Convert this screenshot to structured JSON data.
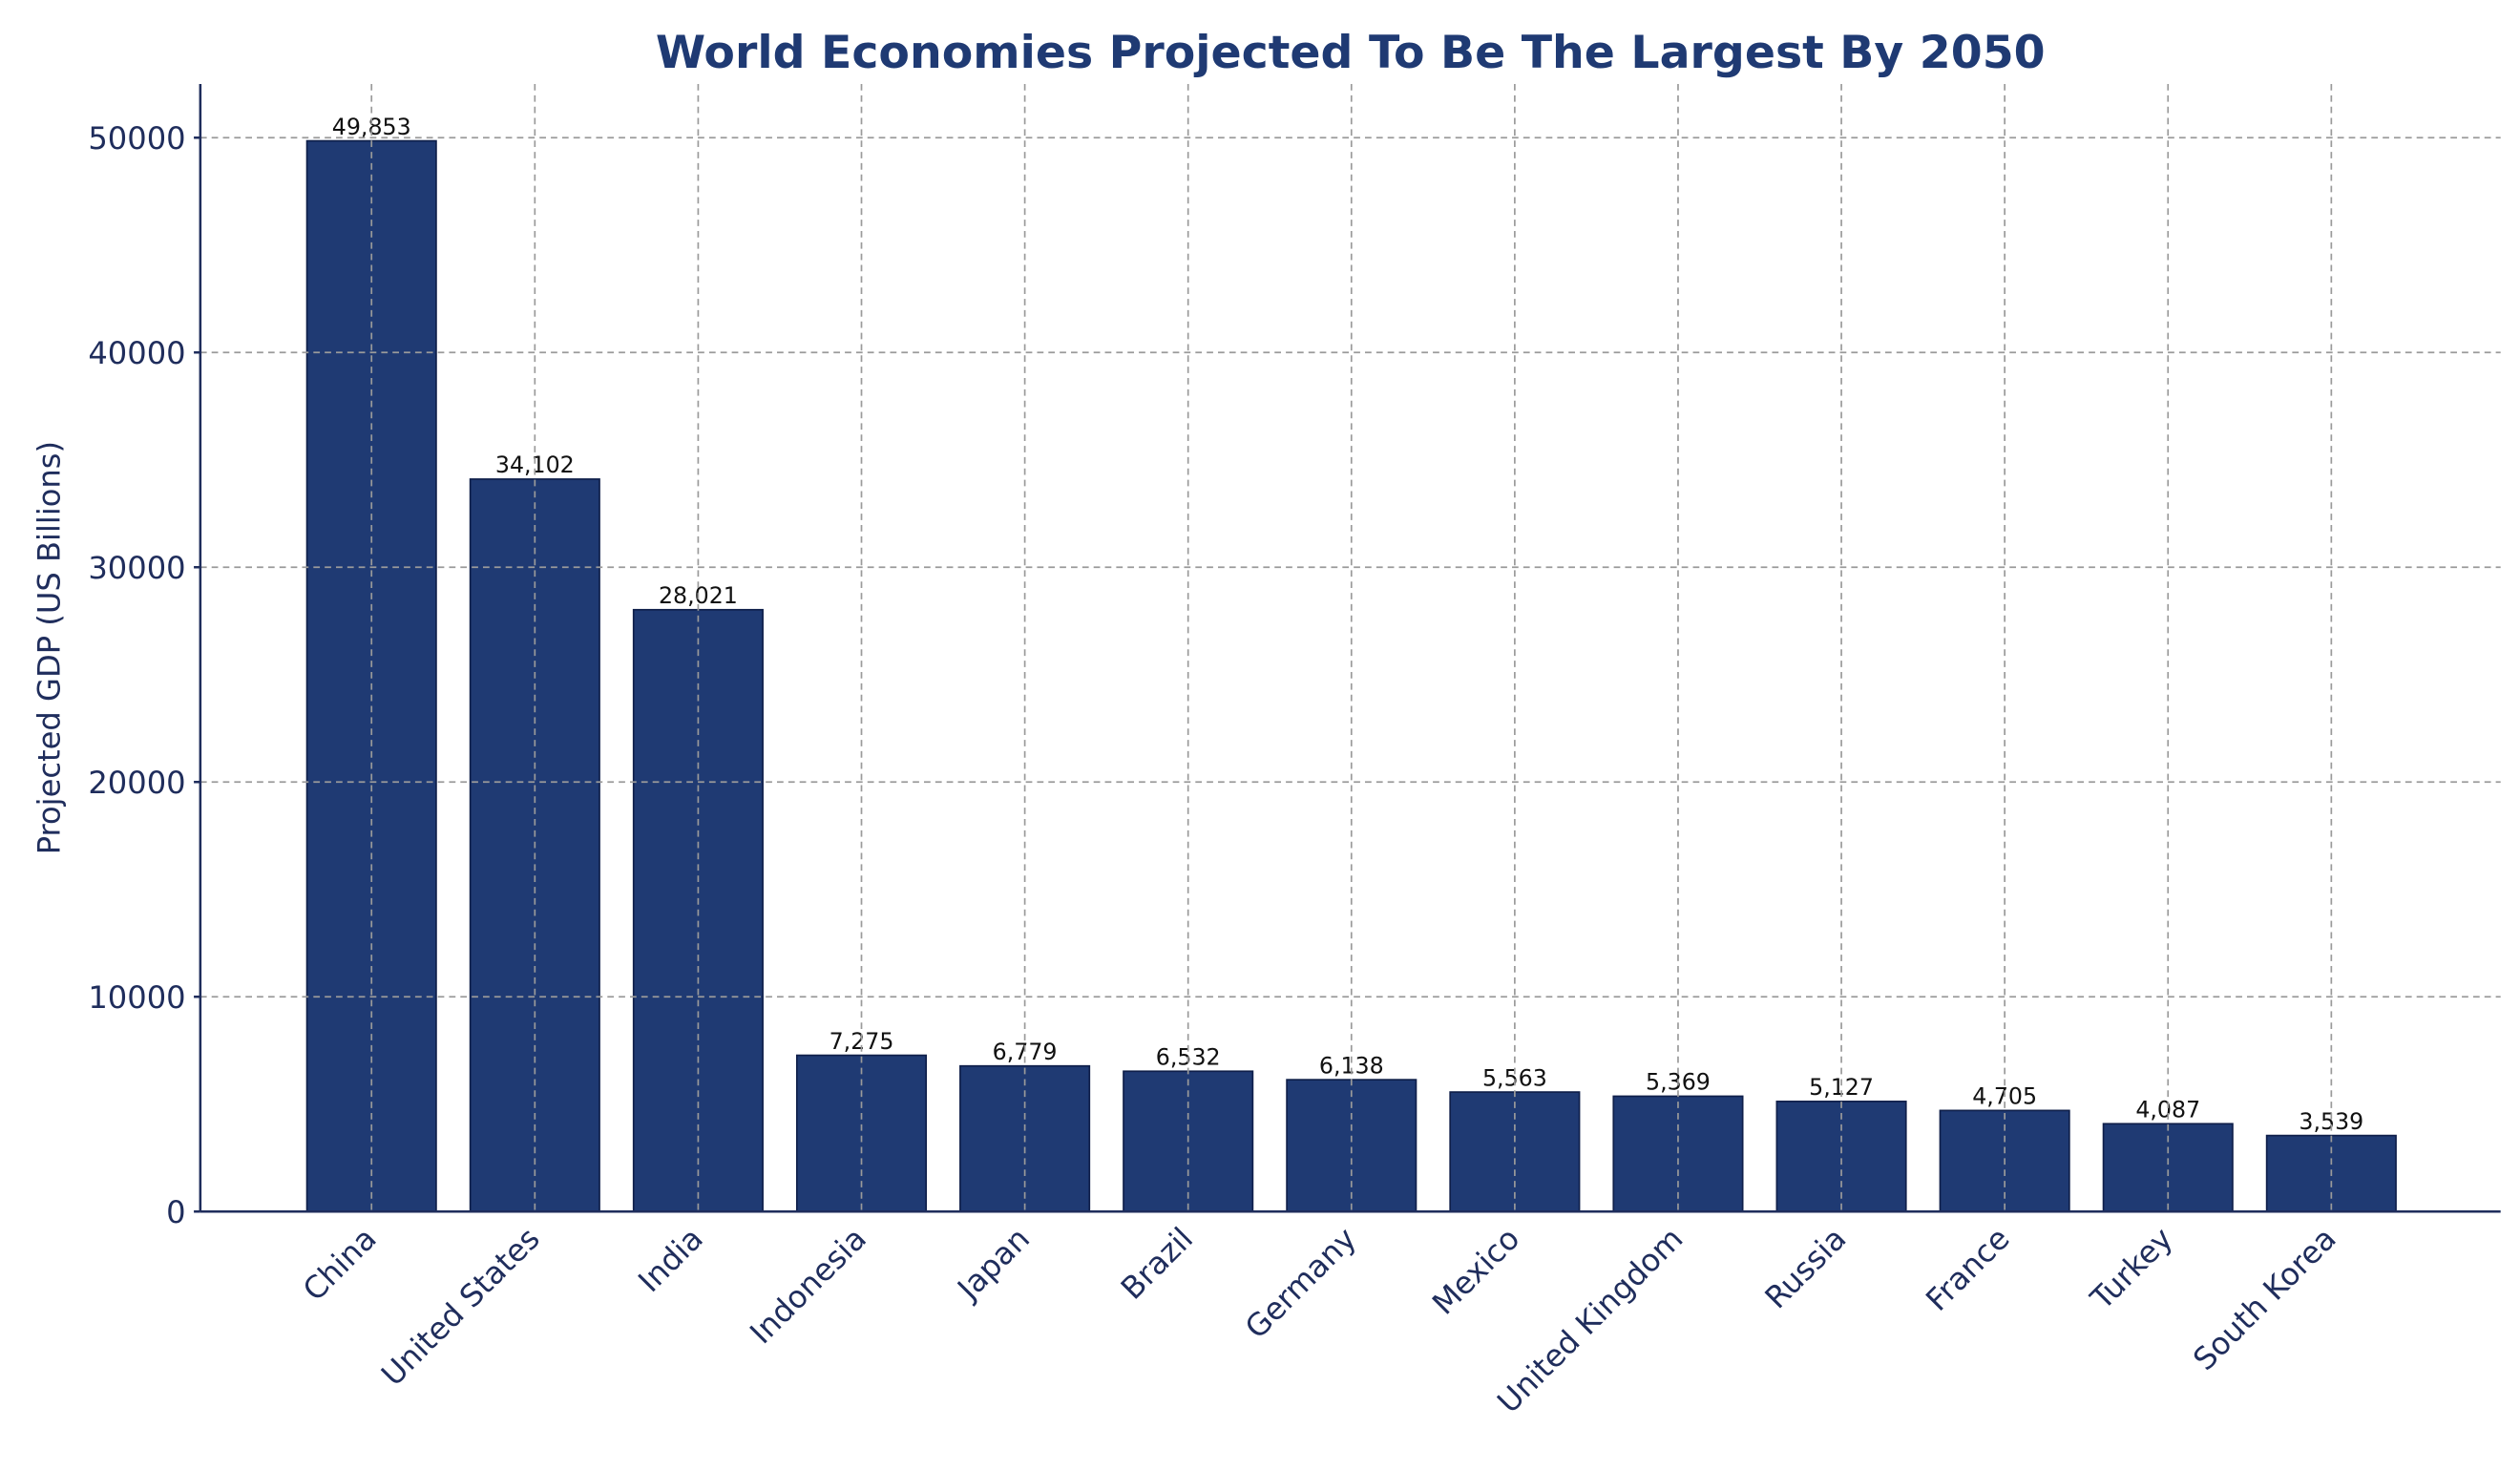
{
  "chart_data": {
    "type": "bar",
    "title": "World Economies Projected To Be The Largest By 2050",
    "xlabel": "",
    "ylabel": "Projected GDP (US Billions)",
    "categories": [
      "China",
      "United States",
      "India",
      "Indonesia",
      "Japan",
      "Brazil",
      "Germany",
      "Mexico",
      "United Kingdom",
      "Russia",
      "France",
      "Turkey",
      "South Korea"
    ],
    "values": [
      49853,
      34102,
      28021,
      7275,
      6779,
      6532,
      6138,
      5563,
      5369,
      5127,
      4705,
      4087,
      3539
    ],
    "data_labels": [
      "49,853",
      "34,102",
      "28,021",
      "7,275",
      "6,779",
      "6,532",
      "6,138",
      "5,563",
      "5,369",
      "5,127",
      "4,705",
      "4,087",
      "3,539"
    ],
    "ylim": [
      0,
      52500
    ],
    "yticks": [
      "0",
      "10000",
      "20000",
      "30000",
      "40000",
      "50000"
    ],
    "grid": true,
    "bar_color": "#1f3a73",
    "text_color": "#1f2d5c"
  }
}
